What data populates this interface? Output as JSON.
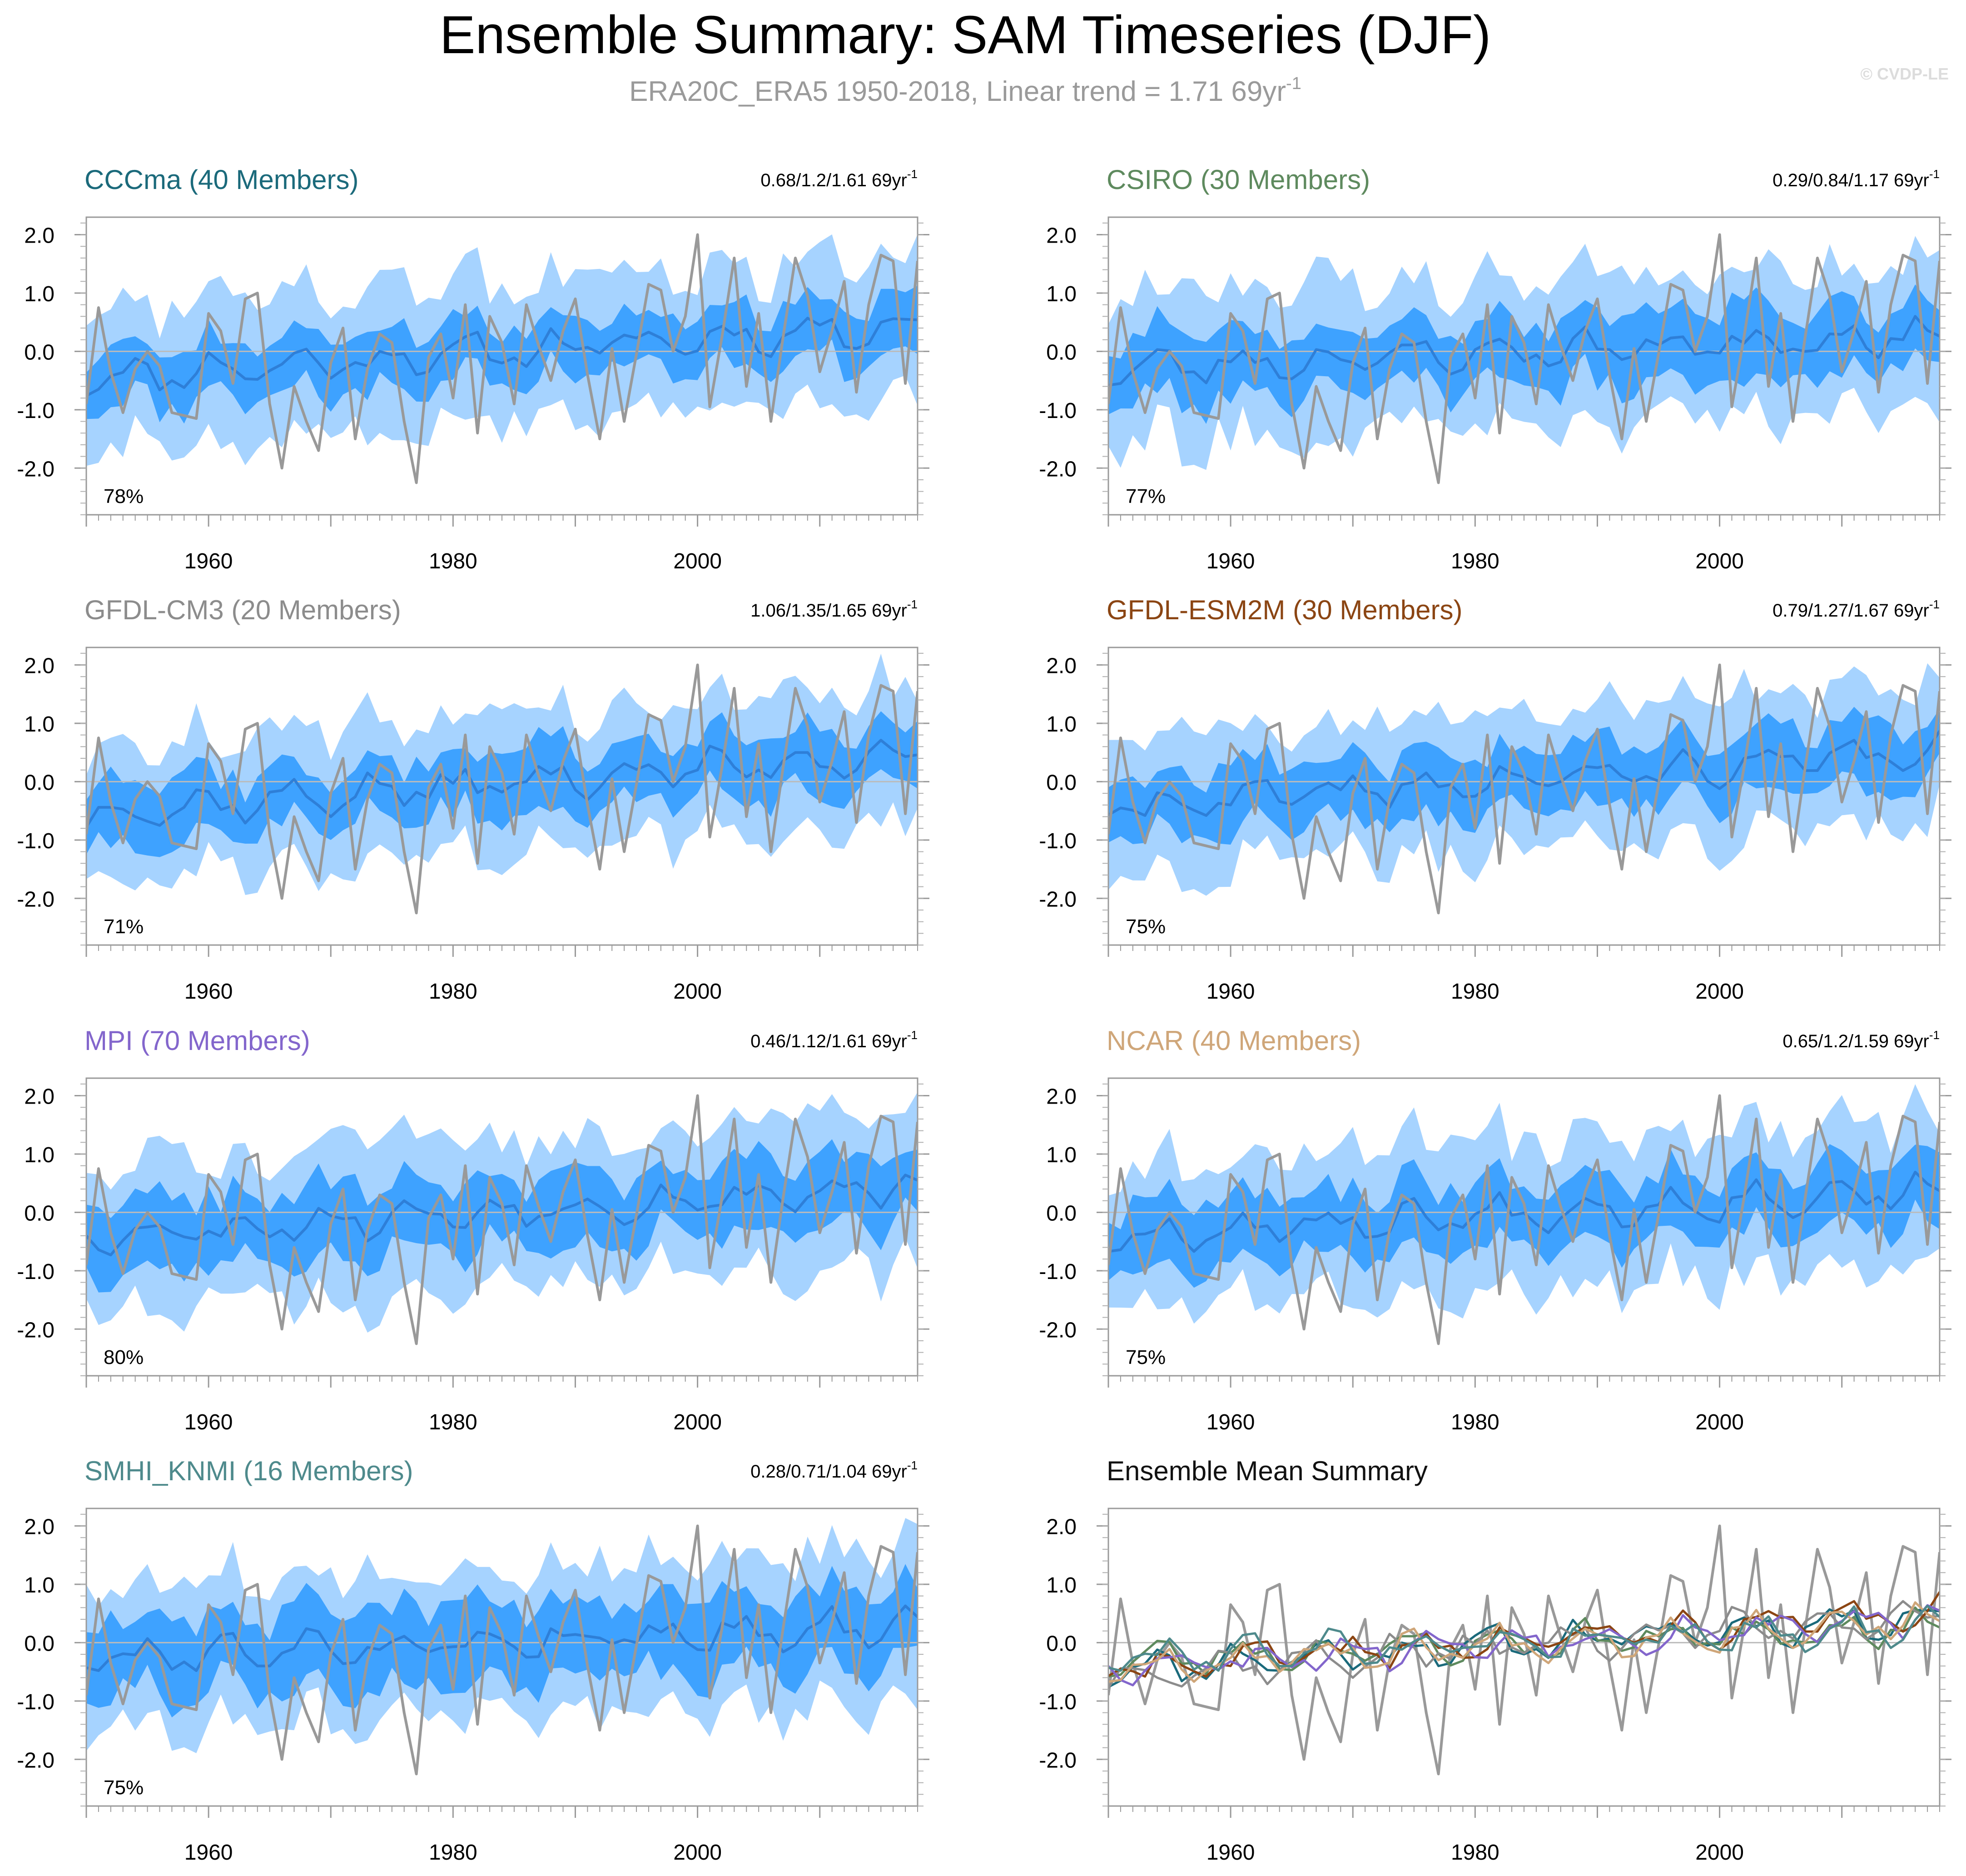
{
  "figure": {
    "title": "Ensemble Summary: SAM Timeseries (DJF)",
    "subtitle_prefix": "ERA20C_ERA5 1950-2018, Linear trend = 1.71 69yr",
    "subtitle_sup": "-1",
    "watermark": "© CVDP-LE"
  },
  "colors": {
    "band_outer": "#A6D3FF",
    "band_inner": "#3EA2FF",
    "ens_mean": "#2E7FD8",
    "observed": "#999999",
    "zero_line": "#BBBBBB",
    "CCCma": "#1B6A7B",
    "CSIRO": "#5E8A5E",
    "GFDL-CM3": "#8C8C8C",
    "GFDL-ESM2M": "#8B4513",
    "MPI": "#8366CC",
    "NCAR": "#CFA679",
    "SMHI_KNMI": "#4E8A8C"
  },
  "chart_data": [
    {
      "id": "cccma",
      "type": "area",
      "title": "CCCma (40 Members)",
      "color_key": "CCCma",
      "stats": "0.68/1.2/1.61 69yr",
      "stats_sup": "-1",
      "pct": "78%",
      "seed": 11,
      "mean_start": -0.45,
      "mean_end": 0.45,
      "spread": 0.45,
      "outer": 1.15,
      "x": [
        1950,
        2018
      ],
      "xticks": [
        "1960",
        "1980",
        "2000"
      ],
      "xtick_values": [
        1960,
        1980,
        2000
      ],
      "ylim": [
        -2.8,
        2.3
      ],
      "yticks": [
        "2.0",
        "1.0",
        "0.0",
        "-1.0",
        "-2.0"
      ],
      "ytick_values": [
        2,
        1,
        0,
        -1,
        -2
      ]
    },
    {
      "id": "csiro",
      "type": "area",
      "title": "CSIRO (30 Members)",
      "color_key": "CSIRO",
      "stats": "0.29/0.84/1.17 69yr",
      "stats_sup": "-1",
      "pct": "77%",
      "seed": 23,
      "mean_start": -0.3,
      "mean_end": 0.3,
      "spread": 0.55,
      "outer": 1.25,
      "x": [
        1950,
        2018
      ],
      "xticks": [
        "1960",
        "1980",
        "2000"
      ],
      "xtick_values": [
        1960,
        1980,
        2000
      ],
      "ylim": [
        -2.8,
        2.3
      ],
      "yticks": [
        "2.0",
        "1.0",
        "0.0",
        "-1.0",
        "-2.0"
      ],
      "ytick_values": [
        2,
        1,
        0,
        -1,
        -2
      ]
    },
    {
      "id": "gfdlcm3",
      "type": "area",
      "title": "GFDL-CM3 (20 Members)",
      "color_key": "GFDL-CM3",
      "stats": "1.06/1.35/1.65 69yr",
      "stats_sup": "-1",
      "pct": "71%",
      "seed": 37,
      "mean_start": -0.55,
      "mean_end": 0.5,
      "spread": 0.5,
      "outer": 1.15,
      "x": [
        1950,
        2018
      ],
      "xticks": [
        "1960",
        "1980",
        "2000"
      ],
      "xtick_values": [
        1960,
        1980,
        2000
      ],
      "ylim": [
        -2.8,
        2.3
      ],
      "yticks": [
        "2.0",
        "1.0",
        "0.0",
        "-1.0",
        "-2.0"
      ],
      "ytick_values": [
        2,
        1,
        0,
        -1,
        -2
      ]
    },
    {
      "id": "gfdlesm2m",
      "type": "area",
      "title": "GFDL-ESM2M (30 Members)",
      "color_key": "GFDL-ESM2M",
      "stats": "0.79/1.27/1.67 69yr",
      "stats_sup": "-1",
      "pct": "75%",
      "seed": 41,
      "mean_start": -0.45,
      "mean_end": 0.5,
      "spread": 0.5,
      "outer": 1.2,
      "x": [
        1950,
        2018
      ],
      "xticks": [
        "1960",
        "1980",
        "2000"
      ],
      "xtick_values": [
        1960,
        1980,
        2000
      ],
      "ylim": [
        -2.8,
        2.3
      ],
      "yticks": [
        "2.0",
        "1.0",
        "0.0",
        "-1.0",
        "-2.0"
      ],
      "ytick_values": [
        2,
        1,
        0,
        -1,
        -2
      ]
    },
    {
      "id": "mpi",
      "type": "area",
      "title": "MPI (70 Members)",
      "color_key": "MPI",
      "stats": "0.46/1.12/1.61 69yr",
      "stats_sup": "-1",
      "pct": "80%",
      "seed": 53,
      "mean_start": -0.4,
      "mean_end": 0.45,
      "spread": 0.55,
      "outer": 1.25,
      "x": [
        1950,
        2018
      ],
      "xticks": [
        "1960",
        "1980",
        "2000"
      ],
      "xtick_values": [
        1960,
        1980,
        2000
      ],
      "ylim": [
        -2.8,
        2.3
      ],
      "yticks": [
        "2.0",
        "1.0",
        "0.0",
        "-1.0",
        "-2.0"
      ],
      "ytick_values": [
        2,
        1,
        0,
        -1,
        -2
      ]
    },
    {
      "id": "ncar",
      "type": "area",
      "title": "NCAR (40 Members)",
      "color_key": "NCAR",
      "stats": "0.65/1.2/1.59 69yr",
      "stats_sup": "-1",
      "pct": "75%",
      "seed": 67,
      "mean_start": -0.4,
      "mean_end": 0.4,
      "spread": 0.5,
      "outer": 1.2,
      "x": [
        1950,
        2018
      ],
      "xticks": [
        "1960",
        "1980",
        "2000"
      ],
      "xtick_values": [
        1960,
        1980,
        2000
      ],
      "ylim": [
        -2.8,
        2.3
      ],
      "yticks": [
        "2.0",
        "1.0",
        "0.0",
        "-1.0",
        "-2.0"
      ],
      "ytick_values": [
        2,
        1,
        0,
        -1,
        -2
      ]
    },
    {
      "id": "smhi",
      "type": "area",
      "title": "SMHI_KNMI (16 Members)",
      "color_key": "SMHI_KNMI",
      "stats": "0.28/0.71/1.04 69yr",
      "stats_sup": "-1",
      "pct": "75%",
      "seed": 79,
      "mean_start": -0.25,
      "mean_end": 0.3,
      "spread": 0.6,
      "outer": 1.25,
      "x": [
        1950,
        2018
      ],
      "xticks": [
        "1960",
        "1980",
        "2000"
      ],
      "xtick_values": [
        1960,
        1980,
        2000
      ],
      "ylim": [
        -2.8,
        2.3
      ],
      "yticks": [
        "2.0",
        "1.0",
        "0.0",
        "-1.0",
        "-2.0"
      ],
      "ytick_values": [
        2,
        1,
        0,
        -1,
        -2
      ]
    },
    {
      "id": "summary",
      "type": "line",
      "title": "Ensemble Mean Summary",
      "color_key": "summary",
      "series_keys": [
        "CCCma",
        "CSIRO",
        "GFDL-CM3",
        "GFDL-ESM2M",
        "MPI",
        "NCAR",
        "SMHI_KNMI"
      ],
      "x": [
        1950,
        2018
      ],
      "xticks": [
        "1960",
        "1980",
        "2000"
      ],
      "xtick_values": [
        1960,
        1980,
        2000
      ],
      "ylim": [
        -2.8,
        2.3
      ],
      "yticks": [
        "2.0",
        "1.0",
        "0.0",
        "-1.0",
        "-2.0"
      ],
      "ytick_values": [
        2,
        1,
        0,
        -1,
        -2
      ]
    }
  ],
  "observed": {
    "name": "ERA20C_ERA5",
    "x_start": 1950,
    "values": [
      -0.9,
      0.75,
      -0.35,
      -1.05,
      -0.3,
      0.0,
      -0.25,
      -1.05,
      -1.1,
      -1.15,
      0.65,
      0.35,
      -0.55,
      0.9,
      1.0,
      -0.9,
      -2.0,
      -0.6,
      -1.2,
      -1.7,
      -0.2,
      0.4,
      -1.5,
      -0.3,
      0.3,
      0.15,
      -1.2,
      -2.25,
      -0.1,
      0.3,
      -0.8,
      0.8,
      -1.4,
      0.6,
      0.15,
      -0.9,
      0.8,
      0.1,
      -0.5,
      0.35,
      0.9,
      -0.4,
      -1.5,
      0.05,
      -1.2,
      -0.05,
      1.15,
      1.05,
      0.0,
      0.6,
      2.0,
      -0.95,
      0.25,
      1.6,
      -0.6,
      0.65,
      -1.2,
      0.25,
      1.6,
      0.95,
      -0.35,
      0.35,
      1.2,
      -0.7,
      0.8,
      1.65,
      1.55,
      -0.55,
      1.55
    ]
  }
}
